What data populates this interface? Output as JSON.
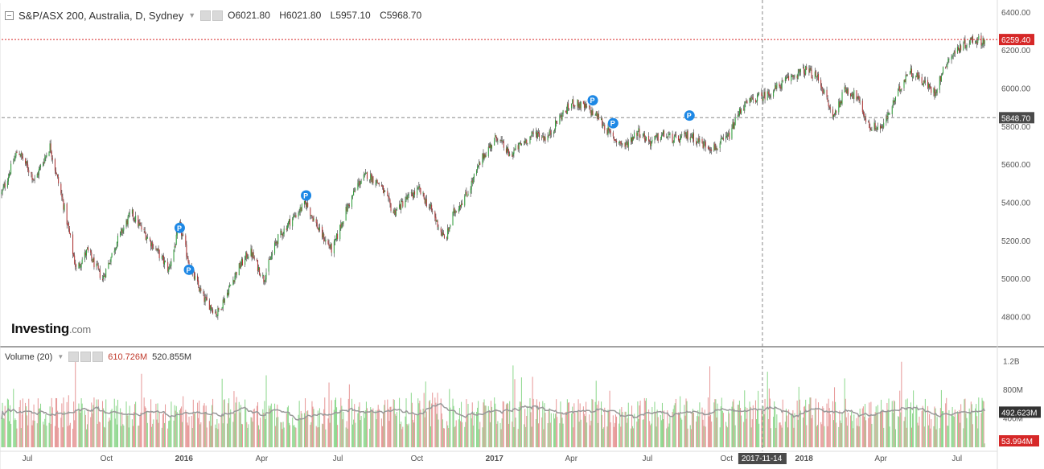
{
  "header": {
    "instrument": "S&P/ASX 200, Australia, D, Sydney",
    "ohlc": [
      {
        "key": "O",
        "value": "6021.80"
      },
      {
        "key": "H",
        "value": "6021.80"
      },
      {
        "key": "L",
        "value": "5957.10"
      },
      {
        "key": "C",
        "value": "5968.70"
      }
    ]
  },
  "volume_header": {
    "label": "Volume (20)",
    "value_red": "610.726M",
    "value_dark": "520.855M"
  },
  "logo": {
    "text": "Investing",
    "suffix": ".com"
  },
  "colors": {
    "up": "#2e9e3a",
    "down": "#b03535",
    "wick": "#333333",
    "vol_up": "#8fd88f",
    "vol_down": "#e79a9a",
    "vol_ma": "#999999",
    "last_price_line": "#d62828",
    "crosshair": "#888888"
  },
  "chart_data": [
    {
      "type": "candlestick",
      "ylim": [
        4650,
        6450
      ],
      "y_ticks": [
        "6400.00",
        "6200.00",
        "6000.00",
        "5800.00",
        "5600.00",
        "5400.00",
        "5200.00",
        "5000.00",
        "4800.00"
      ],
      "x_ticks": [
        "Jul",
        "Oct",
        "2016",
        "Apr",
        "Jul",
        "Oct",
        "2017",
        "Apr",
        "Jul",
        "Oct",
        "2017-11-14",
        "2018",
        "Apr",
        "Jul"
      ],
      "last_price": "6259.40",
      "crosshair_price": "5848.70",
      "crosshair_date": "2017-11-14",
      "close_path": [
        [
          "2015-06-01",
          5450
        ],
        [
          "2015-06-20",
          5680
        ],
        [
          "2015-07-10",
          5520
        ],
        [
          "2015-07-28",
          5700
        ],
        [
          "2015-08-15",
          5350
        ],
        [
          "2015-08-28",
          5050
        ],
        [
          "2015-09-10",
          5150
        ],
        [
          "2015-09-28",
          5000
        ],
        [
          "2015-10-15",
          5200
        ],
        [
          "2015-11-01",
          5350
        ],
        [
          "2015-11-15",
          5250
        ],
        [
          "2015-12-01",
          5150
        ],
        [
          "2015-12-15",
          5050
        ],
        [
          "2015-12-28",
          5280
        ],
        [
          "2016-01-10",
          5050
        ],
        [
          "2016-01-25",
          4900
        ],
        [
          "2016-02-10",
          4820
        ],
        [
          "2016-02-22",
          4930
        ],
        [
          "2016-03-05",
          5050
        ],
        [
          "2016-03-20",
          5150
        ],
        [
          "2016-04-05",
          5000
        ],
        [
          "2016-04-20",
          5200
        ],
        [
          "2016-05-05",
          5300
        ],
        [
          "2016-05-25",
          5400
        ],
        [
          "2016-06-10",
          5250
        ],
        [
          "2016-06-25",
          5150
        ],
        [
          "2016-07-10",
          5350
        ],
        [
          "2016-07-25",
          5500
        ],
        [
          "2016-08-05",
          5550
        ],
        [
          "2016-08-20",
          5500
        ],
        [
          "2016-09-05",
          5350
        ],
        [
          "2016-09-20",
          5420
        ],
        [
          "2016-10-05",
          5470
        ],
        [
          "2016-10-20",
          5360
        ],
        [
          "2016-11-05",
          5200
        ],
        [
          "2016-11-15",
          5350
        ],
        [
          "2016-12-01",
          5450
        ],
        [
          "2016-12-20",
          5650
        ],
        [
          "2017-01-05",
          5750
        ],
        [
          "2017-01-20",
          5650
        ],
        [
          "2017-02-05",
          5720
        ],
        [
          "2017-02-20",
          5770
        ],
        [
          "2017-03-05",
          5740
        ],
        [
          "2017-03-20",
          5850
        ],
        [
          "2017-04-05",
          5930
        ],
        [
          "2017-04-20",
          5900
        ],
        [
          "2017-05-05",
          5850
        ],
        [
          "2017-05-20",
          5750
        ],
        [
          "2017-06-05",
          5700
        ],
        [
          "2017-06-20",
          5780
        ],
        [
          "2017-07-05",
          5720
        ],
        [
          "2017-07-20",
          5760
        ],
        [
          "2017-08-05",
          5730
        ],
        [
          "2017-08-20",
          5760
        ],
        [
          "2017-09-05",
          5710
        ],
        [
          "2017-09-20",
          5690
        ],
        [
          "2017-10-05",
          5750
        ],
        [
          "2017-10-20",
          5900
        ],
        [
          "2017-11-05",
          5950
        ],
        [
          "2017-11-20",
          5970
        ],
        [
          "2017-12-05",
          6020
        ],
        [
          "2017-12-20",
          6070
        ],
        [
          "2018-01-05",
          6100
        ],
        [
          "2018-01-20",
          6050
        ],
        [
          "2018-02-05",
          5850
        ],
        [
          "2018-02-20",
          6000
        ],
        [
          "2018-03-05",
          5960
        ],
        [
          "2018-03-20",
          5800
        ],
        [
          "2018-04-05",
          5800
        ],
        [
          "2018-04-20",
          5950
        ],
        [
          "2018-05-05",
          6100
        ],
        [
          "2018-05-20",
          6050
        ],
        [
          "2018-06-05",
          5980
        ],
        [
          "2018-06-20",
          6150
        ],
        [
          "2018-07-05",
          6220
        ],
        [
          "2018-07-20",
          6260
        ],
        [
          "2018-08-05",
          6250
        ]
      ],
      "annotations": [
        {
          "label": "P",
          "date": "2015-12-28",
          "price": 5270
        },
        {
          "label": "P",
          "date": "2016-01-08",
          "price": 5050
        },
        {
          "label": "P",
          "date": "2016-05-25",
          "price": 5440
        },
        {
          "label": "P",
          "date": "2017-04-28",
          "price": 5940
        },
        {
          "label": "P",
          "date": "2017-05-22",
          "price": 5820
        },
        {
          "label": "P",
          "date": "2017-08-20",
          "price": 5860
        }
      ]
    },
    {
      "type": "bar",
      "series": [
        {
          "name": "Volume (20)"
        }
      ],
      "ylim": [
        0,
        1400
      ],
      "y_ticks": [
        "1.2B",
        "800M",
        "400M"
      ],
      "current_volume": "53.994M",
      "current_ma": "492.623M"
    }
  ]
}
